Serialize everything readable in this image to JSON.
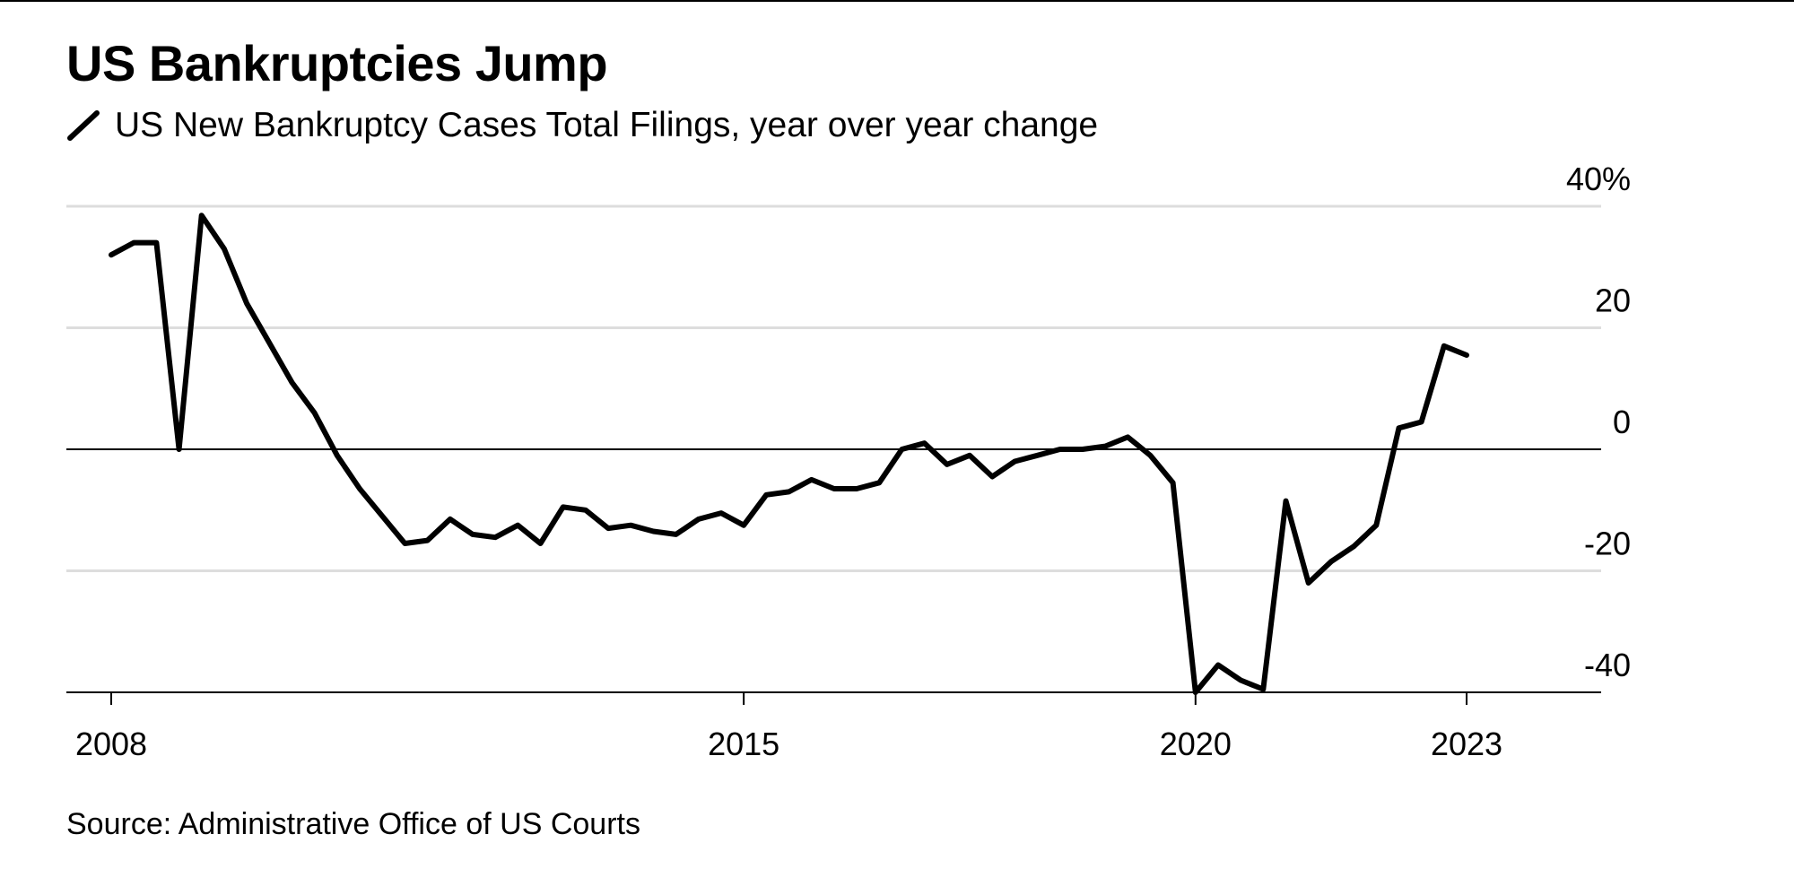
{
  "title": "US Bankruptcies Jump",
  "subtitle": "US New Bankruptcy Cases Total Filings, year over year change",
  "source": "Source: Administrative Office of US Courts",
  "colors": {
    "line": "#000000",
    "grid": "#dddddd",
    "zero_line": "#000000",
    "background": "#ffffff"
  },
  "chart_data": {
    "type": "line",
    "title": "US Bankruptcies Jump",
    "xlabel": "",
    "ylabel": "",
    "xlim": [
      2007.5,
      2024.3
    ],
    "ylim": [
      -40,
      40
    ],
    "y_ticks": [
      40,
      20,
      0,
      -20,
      -40
    ],
    "y_tick_labels": [
      "40%",
      "20",
      "0",
      "-20",
      "-40"
    ],
    "x_ticks": [
      2008,
      2015,
      2020,
      2023
    ],
    "x_tick_labels": [
      "2008",
      "2015",
      "2020",
      "2023"
    ],
    "grid": true,
    "legend": "top-left",
    "series": [
      {
        "name": "US New Bankruptcy Cases Total Filings, year over year change",
        "x": [
          2008.0,
          2008.25,
          2008.5,
          2008.75,
          2009.0,
          2009.25,
          2009.5,
          2009.75,
          2010.0,
          2010.25,
          2010.5,
          2010.75,
          2011.0,
          2011.25,
          2011.5,
          2011.75,
          2012.0,
          2012.25,
          2012.5,
          2012.75,
          2013.0,
          2013.25,
          2013.5,
          2013.75,
          2014.0,
          2014.25,
          2014.5,
          2014.75,
          2015.0,
          2015.25,
          2015.5,
          2015.75,
          2016.0,
          2016.25,
          2016.5,
          2016.75,
          2017.0,
          2017.25,
          2017.5,
          2017.75,
          2018.0,
          2018.25,
          2018.5,
          2018.75,
          2019.0,
          2019.25,
          2019.5,
          2019.75,
          2020.0,
          2020.25,
          2020.5,
          2020.75,
          2021.0,
          2021.25,
          2021.5,
          2021.75,
          2022.0,
          2022.25,
          2022.5,
          2022.75,
          2023.0
        ],
        "values": [
          32,
          34,
          34,
          0,
          38.5,
          33,
          24,
          17.5,
          11,
          6,
          -1,
          -6.5,
          -11,
          -15.5,
          -15,
          -11.5,
          -14,
          -14.5,
          -12.5,
          -15.5,
          -9.5,
          -10,
          -13,
          -12.5,
          -13.5,
          -14,
          -11.5,
          -10.5,
          -12.5,
          -7.5,
          -7,
          -5,
          -6.5,
          -6.5,
          -5.5,
          0,
          1,
          -2.5,
          -1,
          -4.5,
          -2,
          -1,
          0,
          0,
          0.5,
          2,
          -1,
          -5.5,
          -40,
          -35.5,
          -38,
          -39.5,
          -8.5,
          -22,
          -18.5,
          -16,
          -12.5,
          3.5,
          4.5,
          17,
          15.5
        ]
      }
    ]
  }
}
